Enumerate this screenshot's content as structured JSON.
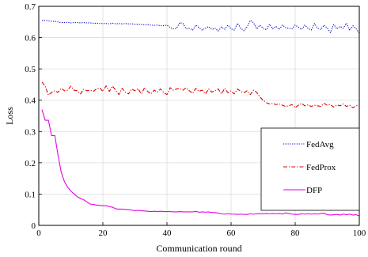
{
  "chart_data": {
    "type": "line",
    "xlabel": "Communication round",
    "ylabel": "Loss",
    "xlim": [
      0,
      100
    ],
    "ylim": [
      0,
      0.7
    ],
    "x_ticks": [
      "0",
      "20",
      "40",
      "60",
      "80",
      "100"
    ],
    "y_ticks": [
      "0",
      "0.1",
      "0.2",
      "0.3",
      "0.4",
      "0.5",
      "0.6",
      "0.7"
    ],
    "grid": true,
    "legend_position": "right",
    "x": [
      1,
      2,
      3,
      4,
      5,
      6,
      7,
      8,
      9,
      10,
      11,
      12,
      13,
      14,
      15,
      16,
      17,
      18,
      19,
      20,
      21,
      22,
      23,
      24,
      25,
      26,
      27,
      28,
      29,
      30,
      31,
      32,
      33,
      34,
      35,
      36,
      37,
      38,
      39,
      40,
      41,
      42,
      43,
      44,
      45,
      46,
      47,
      48,
      49,
      50,
      51,
      52,
      53,
      54,
      55,
      56,
      57,
      58,
      59,
      60,
      61,
      62,
      63,
      64,
      65,
      66,
      67,
      68,
      69,
      70,
      71,
      72,
      73,
      74,
      75,
      76,
      77,
      78,
      79,
      80,
      81,
      82,
      83,
      84,
      85,
      86,
      87,
      88,
      89,
      90,
      91,
      92,
      93,
      94,
      95,
      96,
      97,
      98,
      99,
      100
    ],
    "series": [
      {
        "name": "FedAvg",
        "color": "#0000cc",
        "style": "dotted",
        "values": [
          0.655,
          0.655,
          0.654,
          0.652,
          0.652,
          0.65,
          0.648,
          0.648,
          0.649,
          0.647,
          0.648,
          0.648,
          0.647,
          0.648,
          0.647,
          0.647,
          0.646,
          0.646,
          0.645,
          0.645,
          0.645,
          0.644,
          0.646,
          0.644,
          0.645,
          0.644,
          0.645,
          0.644,
          0.644,
          0.643,
          0.643,
          0.642,
          0.641,
          0.642,
          0.64,
          0.639,
          0.64,
          0.638,
          0.638,
          0.64,
          0.632,
          0.628,
          0.63,
          0.648,
          0.645,
          0.628,
          0.63,
          0.624,
          0.64,
          0.632,
          0.624,
          0.63,
          0.635,
          0.626,
          0.63,
          0.621,
          0.634,
          0.627,
          0.64,
          0.628,
          0.624,
          0.646,
          0.63,
          0.622,
          0.634,
          0.655,
          0.648,
          0.628,
          0.64,
          0.63,
          0.625,
          0.643,
          0.628,
          0.636,
          0.626,
          0.64,
          0.632,
          0.63,
          0.628,
          0.64,
          0.633,
          0.626,
          0.64,
          0.63,
          0.624,
          0.645,
          0.63,
          0.626,
          0.64,
          0.63,
          0.616,
          0.642,
          0.628,
          0.636,
          0.63,
          0.646,
          0.623,
          0.638,
          0.628,
          0.614
        ]
      },
      {
        "name": "FedProx",
        "color": "#dd0000",
        "style": "dashdot",
        "values": [
          0.458,
          0.445,
          0.416,
          0.425,
          0.43,
          0.425,
          0.438,
          0.43,
          0.432,
          0.445,
          0.432,
          0.43,
          0.42,
          0.435,
          0.43,
          0.432,
          0.428,
          0.436,
          0.44,
          0.428,
          0.446,
          0.428,
          0.445,
          0.432,
          0.418,
          0.438,
          0.426,
          0.42,
          0.436,
          0.43,
          0.437,
          0.42,
          0.44,
          0.428,
          0.42,
          0.432,
          0.426,
          0.436,
          0.424,
          0.418,
          0.44,
          0.432,
          0.436,
          0.438,
          0.432,
          0.44,
          0.43,
          0.422,
          0.438,
          0.428,
          0.432,
          0.42,
          0.436,
          0.426,
          0.43,
          0.436,
          0.42,
          0.438,
          0.424,
          0.43,
          0.42,
          0.436,
          0.428,
          0.424,
          0.43,
          0.418,
          0.432,
          0.425,
          0.41,
          0.4,
          0.392,
          0.388,
          0.39,
          0.386,
          0.388,
          0.384,
          0.38,
          0.382,
          0.386,
          0.376,
          0.384,
          0.39,
          0.382,
          0.385,
          0.38,
          0.384,
          0.382,
          0.38,
          0.39,
          0.384,
          0.386,
          0.378,
          0.385,
          0.382,
          0.388,
          0.38,
          0.384,
          0.376,
          0.382,
          0.385
        ]
      },
      {
        "name": "DFP",
        "color": "#e600e6",
        "style": "solid",
        "values": [
          0.37,
          0.336,
          0.336,
          0.287,
          0.287,
          0.225,
          0.17,
          0.14,
          0.122,
          0.11,
          0.1,
          0.092,
          0.086,
          0.082,
          0.075,
          0.068,
          0.067,
          0.065,
          0.064,
          0.063,
          0.063,
          0.06,
          0.058,
          0.053,
          0.052,
          0.052,
          0.051,
          0.05,
          0.049,
          0.047,
          0.048,
          0.047,
          0.046,
          0.045,
          0.044,
          0.045,
          0.044,
          0.045,
          0.044,
          0.044,
          0.044,
          0.043,
          0.043,
          0.044,
          0.043,
          0.043,
          0.043,
          0.043,
          0.045,
          0.042,
          0.043,
          0.042,
          0.043,
          0.041,
          0.041,
          0.039,
          0.037,
          0.036,
          0.037,
          0.036,
          0.036,
          0.035,
          0.036,
          0.035,
          0.035,
          0.037,
          0.036,
          0.037,
          0.037,
          0.037,
          0.038,
          0.037,
          0.038,
          0.037,
          0.038,
          0.036,
          0.04,
          0.038,
          0.036,
          0.035,
          0.035,
          0.037,
          0.036,
          0.037,
          0.036,
          0.037,
          0.036,
          0.038,
          0.039,
          0.034,
          0.033,
          0.034,
          0.035,
          0.033,
          0.036,
          0.034,
          0.036,
          0.033,
          0.034,
          0.03
        ]
      }
    ]
  }
}
